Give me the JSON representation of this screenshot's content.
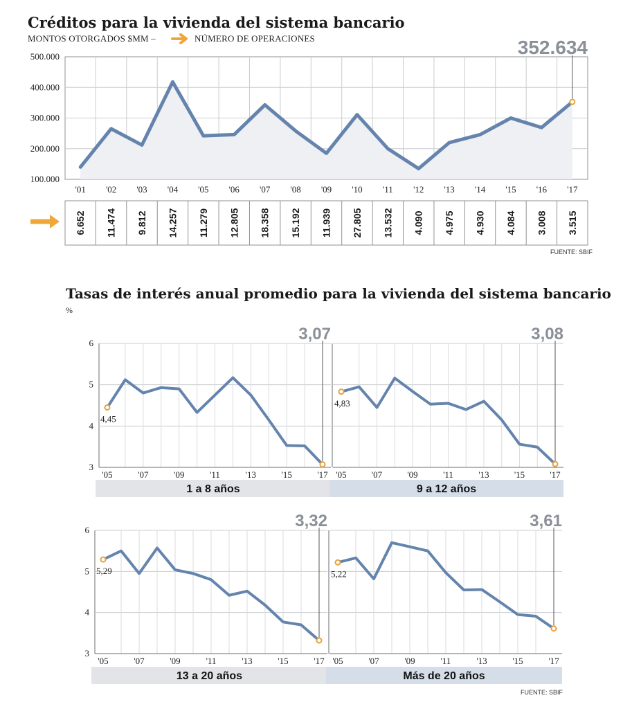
{
  "top": {
    "title": "Créditos para la vivienda del sistema bancario",
    "subtitle_left": "MONTOS OTORGADOS $MM –",
    "subtitle_right": "NÚMERO DE OPERACIONES",
    "highlight": "352.634",
    "source": "FUENTE: SBIF"
  },
  "rates": {
    "title": "Tasas de interés anual promedio para la vivienda del sistema bancario",
    "unit": "%",
    "source": "FUENTE: SBIF"
  },
  "colors": {
    "line": "#6584ad",
    "marker": "#e8a13a",
    "arrow": "#f0a73a",
    "area": "#eef0f4",
    "band_gray": "#e3e4e7",
    "band_blue": "#d5dde9",
    "grid": "#c9cbcf",
    "big_number": "#8a8f98"
  },
  "chart_data": [
    {
      "type": "area",
      "x": [
        "'01",
        "'02",
        "'03",
        "'04",
        "'05",
        "'06",
        "'07",
        "'08",
        "'09",
        "'10",
        "'11",
        "'12",
        "'13",
        "'14",
        "'15",
        "'16",
        "'17"
      ],
      "series": [
        {
          "values": [
            140000,
            265000,
            212000,
            418000,
            242000,
            246000,
            343000,
            258000,
            185000,
            311000,
            200000,
            135000,
            220000,
            246000,
            300000,
            269000,
            352634
          ]
        }
      ],
      "operations": [
        "6.652",
        "11.474",
        "9.812",
        "14.257",
        "11.279",
        "12.805",
        "18.358",
        "15.192",
        "11.939",
        "27.805",
        "13.532",
        "4.090",
        "4.975",
        "4.930",
        "4.084",
        "3.008",
        "3.515"
      ],
      "yticks": [
        "100.000",
        "200.000",
        "300.000",
        "400.000",
        "500.000"
      ],
      "ylim": [
        100000,
        500000
      ],
      "grid": true
    },
    {
      "type": "line",
      "label": "1 a 8 años",
      "x": [
        2005,
        2006,
        2007,
        2008,
        2009,
        2010,
        2011,
        2012,
        2013,
        2014,
        2015,
        2016,
        2017
      ],
      "values": [
        4.45,
        5.12,
        4.8,
        4.93,
        4.9,
        4.33,
        4.75,
        5.17,
        4.75,
        4.15,
        3.53,
        3.52,
        3.07
      ],
      "start_label": "4,45",
      "end_label": "3,07",
      "band": "gray",
      "show_yaxis": true
    },
    {
      "type": "line",
      "label": "9 a 12 años",
      "x": [
        2005,
        2006,
        2007,
        2008,
        2009,
        2010,
        2011,
        2012,
        2013,
        2014,
        2015,
        2016,
        2017
      ],
      "values": [
        4.83,
        4.95,
        4.45,
        5.16,
        4.84,
        4.53,
        4.55,
        4.4,
        4.6,
        4.15,
        3.56,
        3.49,
        3.08
      ],
      "start_label": "4,83",
      "end_label": "3,08",
      "band": "blue",
      "show_yaxis": false
    },
    {
      "type": "line",
      "label": "13 a 20 años",
      "x": [
        2005,
        2006,
        2007,
        2008,
        2009,
        2010,
        2011,
        2012,
        2013,
        2014,
        2015,
        2016,
        2017
      ],
      "values": [
        5.29,
        5.5,
        4.95,
        5.57,
        5.04,
        4.95,
        4.8,
        4.42,
        4.52,
        4.18,
        3.77,
        3.7,
        3.32
      ],
      "start_label": "5,29",
      "end_label": "3,32",
      "band": "gray",
      "show_yaxis": true
    },
    {
      "type": "line",
      "label": "Más de 20 años",
      "x": [
        2005,
        2006,
        2007,
        2008,
        2009,
        2010,
        2011,
        2012,
        2013,
        2014,
        2015,
        2016,
        2017
      ],
      "values": [
        5.22,
        5.33,
        4.82,
        5.7,
        5.6,
        5.5,
        4.97,
        4.55,
        4.56,
        4.26,
        3.95,
        3.91,
        3.61
      ],
      "start_label": "5,22",
      "end_label": "3,61",
      "band": "blue",
      "show_yaxis": false
    }
  ],
  "small_axes": {
    "yticks": [
      "3",
      "4",
      "5",
      "6"
    ],
    "ylim": [
      3,
      6
    ],
    "xticks": [
      "'05",
      "'07",
      "'09",
      "'11",
      "'13",
      "'15",
      "'17"
    ],
    "xtick_years": [
      2005,
      2007,
      2009,
      2011,
      2013,
      2015,
      2017
    ]
  }
}
